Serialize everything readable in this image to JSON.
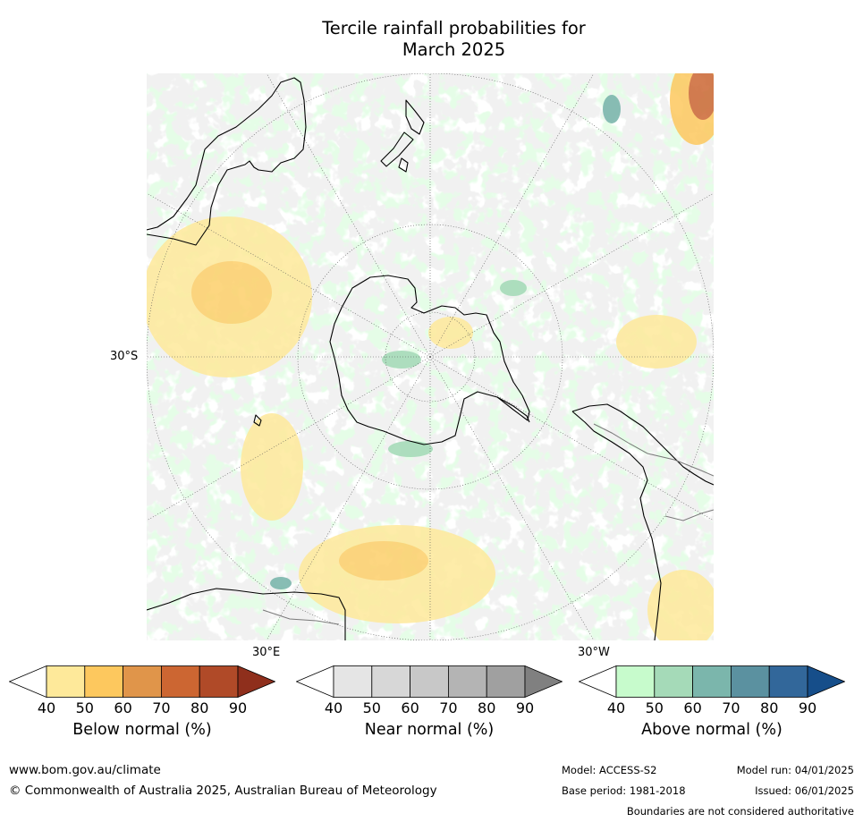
{
  "title_line1": "Tercile rainfall probabilities for",
  "title_line2": "March 2025",
  "map": {
    "lat_label_left": "30°S",
    "lon_label_bottom_left": "30°E",
    "lon_label_bottom_right": "30°W"
  },
  "legends": [
    {
      "id": "below",
      "title": "Below normal (%)",
      "ticks": [
        "40",
        "50",
        "60",
        "70",
        "80",
        "90"
      ],
      "colors": [
        "#ffffff",
        "#fee99a",
        "#fdc85e",
        "#e0954a",
        "#cc6632",
        "#b04a28",
        "#8f2f1c"
      ]
    },
    {
      "id": "near",
      "title": "Near normal (%)",
      "ticks": [
        "40",
        "50",
        "60",
        "70",
        "80",
        "90"
      ],
      "colors": [
        "#ffffff",
        "#e5e5e5",
        "#d7d7d7",
        "#c8c8c8",
        "#b4b4b4",
        "#a0a0a0",
        "#808080"
      ]
    },
    {
      "id": "above",
      "title": "Above normal (%)",
      "ticks": [
        "40",
        "50",
        "60",
        "70",
        "80",
        "90"
      ],
      "colors": [
        "#ffffff",
        "#c7fbcc",
        "#a5dab8",
        "#7bb6ac",
        "#5b91a0",
        "#32679a",
        "#164e8a"
      ]
    }
  ],
  "footer": {
    "website": "www.bom.gov.au/climate",
    "copyright": "© Commonwealth of Australia 2025, Australian Bureau of Meteorology",
    "model": "Model: ACCESS-S2",
    "model_run": "Model run: 04/01/2025",
    "base_period": "Base period: 1981-2018",
    "issued": "Issued: 06/01/2025",
    "disclaimer": "Boundaries are not considered authoritative"
  }
}
